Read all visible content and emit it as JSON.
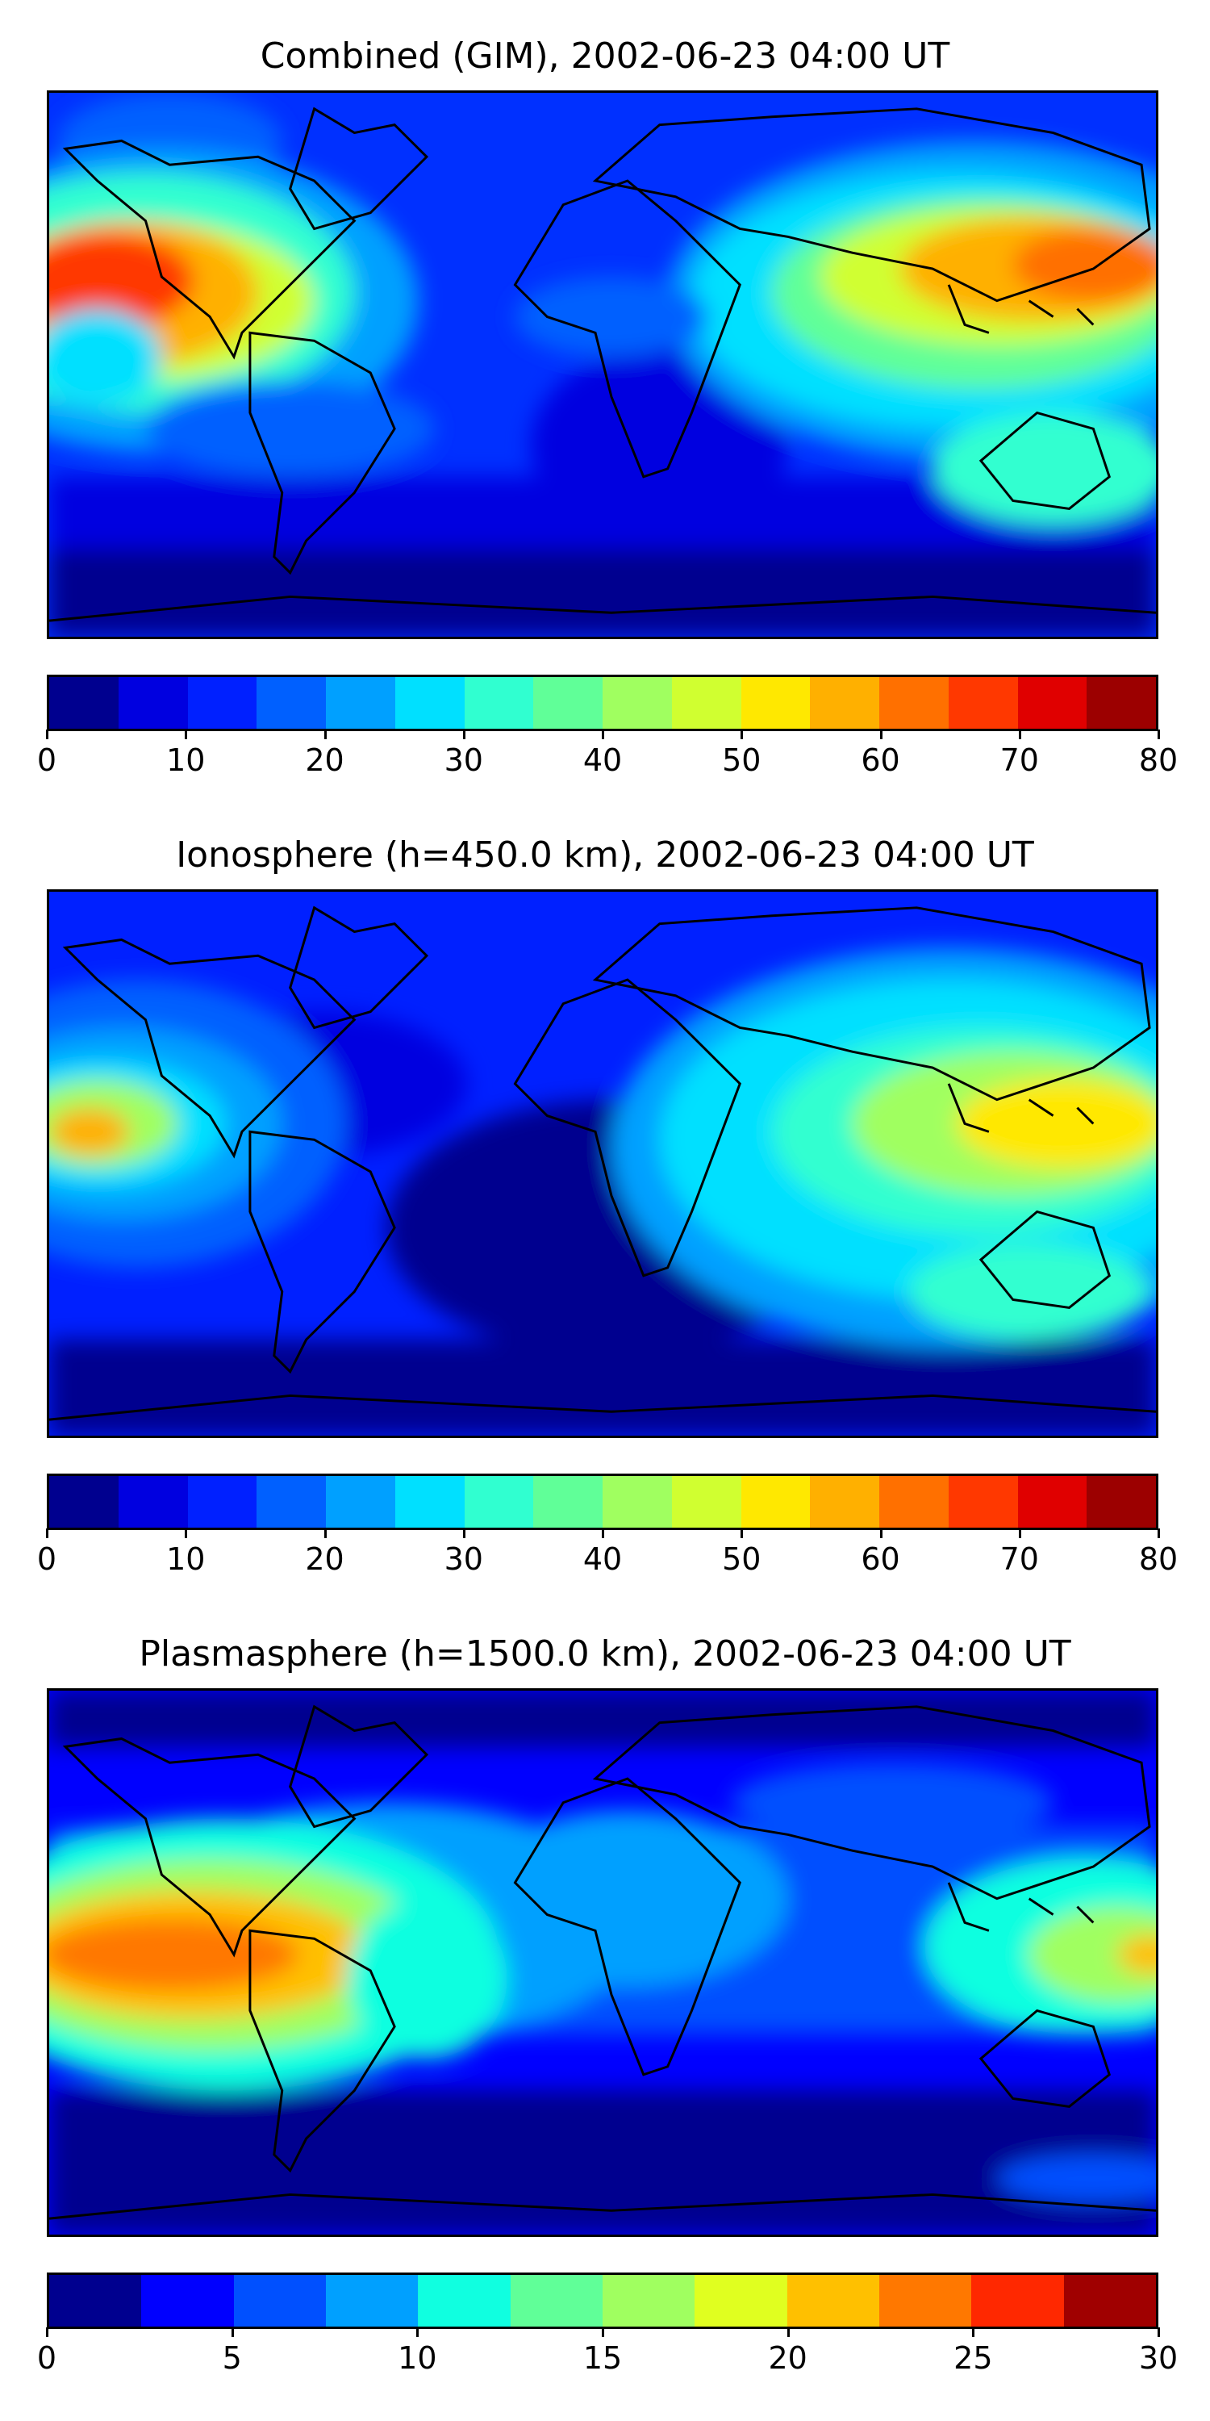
{
  "panels": [
    {
      "title": "Combined (GIM), 2002-06-23 04:00 UT",
      "colorbar": {
        "colors": [
          "#00008f",
          "#0000e0",
          "#0020ff",
          "#0060ff",
          "#00a0ff",
          "#00e0ff",
          "#30ffd0",
          "#60ff98",
          "#a0ff60",
          "#d0ff30",
          "#ffe800",
          "#ffb000",
          "#ff7000",
          "#ff3800",
          "#e00000",
          "#9c0000"
        ],
        "ticks": [
          "0",
          "10",
          "20",
          "30",
          "40",
          "50",
          "60",
          "70",
          "80"
        ]
      }
    },
    {
      "title": "Ionosphere  (h=450.0 km), 2002-06-23 04:00 UT",
      "colorbar": {
        "colors": [
          "#00008f",
          "#0000e0",
          "#0020ff",
          "#0060ff",
          "#00a0ff",
          "#00e0ff",
          "#30ffd0",
          "#60ff98",
          "#a0ff60",
          "#d0ff30",
          "#ffe800",
          "#ffb000",
          "#ff7000",
          "#ff3800",
          "#e00000",
          "#9c0000"
        ],
        "ticks": [
          "0",
          "10",
          "20",
          "30",
          "40",
          "50",
          "60",
          "70",
          "80"
        ]
      }
    },
    {
      "title": "Plasmasphere (h=1500.0 km), 2002-06-23 04:00 UT",
      "colorbar": {
        "colors": [
          "#00008f",
          "#0000ff",
          "#0050ff",
          "#00a0ff",
          "#10ffe0",
          "#60ff98",
          "#a0ff60",
          "#e0ff20",
          "#ffc000",
          "#ff7800",
          "#ff2800",
          "#a00000"
        ],
        "ticks": [
          "0",
          "5",
          "10",
          "15",
          "20",
          "25",
          "30"
        ]
      }
    }
  ]
}
